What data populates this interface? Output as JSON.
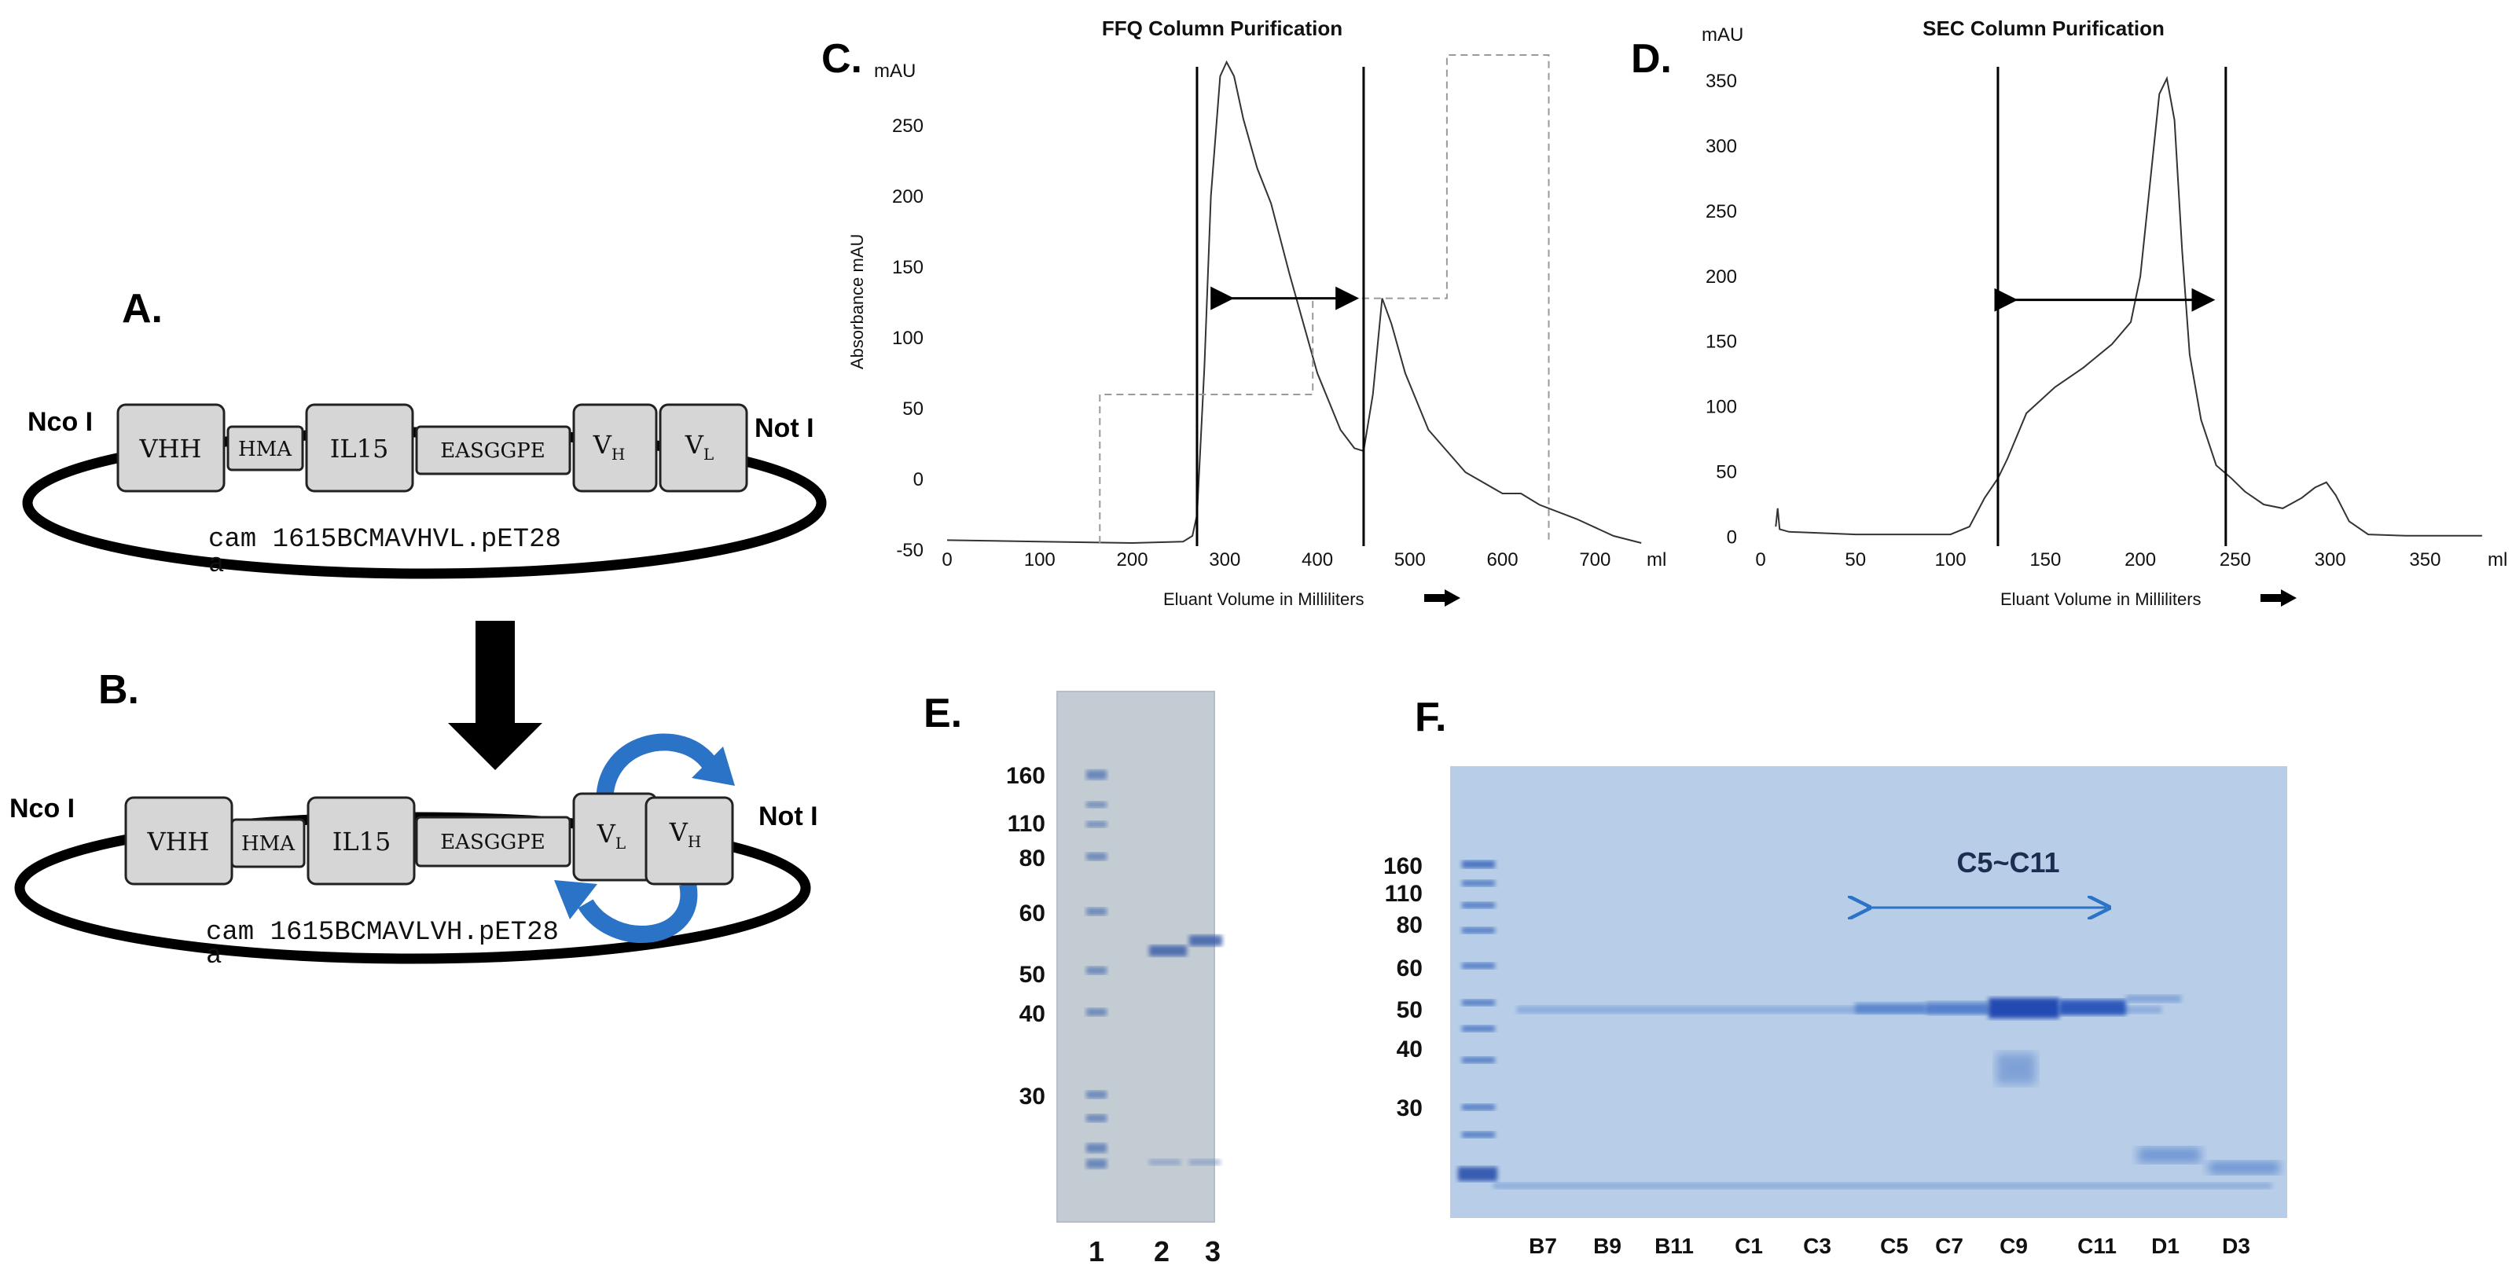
{
  "panel_labels": {
    "a": "A.",
    "b": "B.",
    "c": "C.",
    "d": "D.",
    "e": "E.",
    "f": "F."
  },
  "plasmid_a": {
    "left_site": "Nco I",
    "right_site": "Not I",
    "boxes": {
      "vhh": "VHH",
      "hma": "HMA",
      "il15": "IL15",
      "linker": "EASGGPE",
      "v1": "V",
      "v1_sub": "H",
      "v2": "V",
      "v2_sub": "L"
    },
    "name_line1": "cam 1615BCMAVHVL.pET28",
    "name_line2": "a"
  },
  "plasmid_b": {
    "left_site": "Nco I",
    "right_site": "Not I",
    "boxes": {
      "vhh": "VHH",
      "hma": "HMA",
      "il15": "IL15",
      "linker": "EASGGPE",
      "v1": "V",
      "v1_sub": "L",
      "v2": "V",
      "v2_sub": "H"
    },
    "name_line1": "cam 1615BCMAVLVH.pET28",
    "name_line2": "a"
  },
  "chart_data": [
    {
      "id": "C",
      "type": "line",
      "title": "FFQ Column Purification",
      "ylabel": "Absorbance mAU",
      "yunit": "mAU",
      "xlabel": "Eluant Volume in Milliliters",
      "xunit": "ml",
      "xlim": [
        0,
        760
      ],
      "ylim": [
        -50,
        300
      ],
      "xticks": [
        0,
        100,
        200,
        300,
        400,
        500,
        600,
        700
      ],
      "yticks": [
        -50,
        0,
        50,
        100,
        150,
        200,
        250
      ],
      "vlines": [
        270,
        450
      ],
      "range_arrow": [
        305,
        440,
        128
      ],
      "series": [
        {
          "name": "absorbance",
          "style": "solid",
          "x": [
            0,
            100,
            200,
            255,
            265,
            270,
            278,
            285,
            295,
            302,
            310,
            320,
            335,
            350,
            370,
            400,
            425,
            440,
            450,
            460,
            470,
            480,
            495,
            520,
            560,
            600,
            620,
            640,
            680,
            720,
            750
          ],
          "y": [
            -43,
            -44,
            -45,
            -44,
            -40,
            -25,
            80,
            200,
            285,
            295,
            285,
            255,
            220,
            195,
            145,
            75,
            35,
            22,
            20,
            60,
            128,
            110,
            75,
            35,
            5,
            -10,
            -10,
            -18,
            -28,
            -40,
            -45
          ]
        },
        {
          "name": "gradient",
          "style": "dashed",
          "x": [
            165,
            165,
            395,
            395,
            540,
            540,
            650,
            650
          ],
          "y": [
            -45,
            60,
            60,
            128,
            128,
            300,
            300,
            -45
          ]
        }
      ]
    },
    {
      "id": "D",
      "type": "line",
      "title": "SEC Column Purification",
      "yunit": "mAU",
      "xlabel": "Eluant Volume in Milliliters",
      "xunit": "ml",
      "xlim": [
        0,
        385
      ],
      "ylim": [
        -10,
        370
      ],
      "xticks": [
        0,
        50,
        100,
        150,
        200,
        250,
        300,
        350
      ],
      "yticks": [
        0,
        50,
        100,
        150,
        200,
        250,
        300,
        350
      ],
      "vlines": [
        125,
        245
      ],
      "range_arrow": [
        133,
        237,
        182
      ],
      "series": [
        {
          "name": "absorbance",
          "style": "solid",
          "x": [
            8,
            9,
            10,
            15,
            50,
            100,
            110,
            118,
            125,
            130,
            140,
            155,
            170,
            185,
            195,
            200,
            205,
            210,
            214,
            218,
            222,
            226,
            232,
            240,
            248,
            255,
            265,
            275,
            285,
            292,
            298,
            303,
            310,
            320,
            340,
            380
          ],
          "y": [
            8,
            22,
            6,
            4,
            2,
            2,
            8,
            30,
            45,
            60,
            95,
            115,
            130,
            148,
            165,
            200,
            270,
            340,
            352,
            320,
            220,
            140,
            90,
            55,
            45,
            35,
            25,
            22,
            30,
            38,
            42,
            32,
            12,
            2,
            1,
            1
          ]
        }
      ]
    }
  ],
  "gel_e": {
    "markers": [
      "160",
      "110",
      "80",
      "60",
      "50",
      "40",
      "30"
    ],
    "lanes": [
      "1",
      "2",
      "3"
    ]
  },
  "gel_f": {
    "markers": [
      "160",
      "110",
      "80",
      "60",
      "50",
      "40",
      "30"
    ],
    "lanes": [
      "B7",
      "B9",
      "B11",
      "C1",
      "C3",
      "C5",
      "C7",
      "C9",
      "C11",
      "D1",
      "D3"
    ],
    "range_label": "C5~C11"
  },
  "colors": {
    "box": "#d6d6d6",
    "arrow_blue": "#2a73c6",
    "gel_e_bg": "#c3cbd3",
    "gel_f_bg": "#b7cde8",
    "band_blue": "#2455b8"
  }
}
